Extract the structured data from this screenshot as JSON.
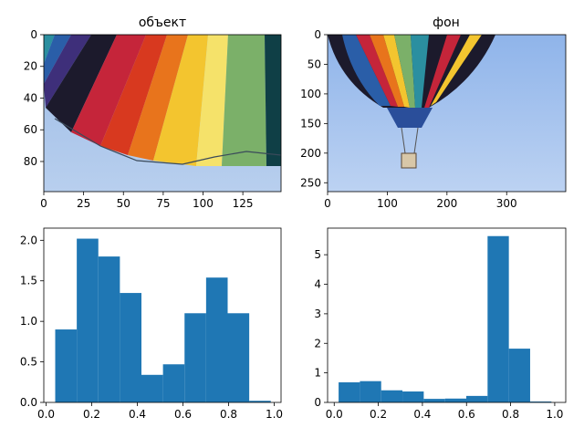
{
  "chart_data": [
    {
      "type": "image",
      "title": "объект",
      "image_description_icon": "hot-air-balloon-closeup-icon",
      "xlim": [
        0,
        149
      ],
      "ylim": [
        99,
        0
      ],
      "x_ticks": [
        0,
        25,
        50,
        75,
        100,
        125
      ],
      "y_ticks": [
        0,
        20,
        40,
        60,
        80
      ]
    },
    {
      "type": "image",
      "title": "фон",
      "image_description_icon": "hot-air-balloon-full-icon",
      "xlim": [
        0,
        399
      ],
      "ylim": [
        265,
        0
      ],
      "x_ticks": [
        0,
        100,
        200,
        300
      ],
      "y_ticks": [
        0,
        50,
        100,
        150,
        200,
        250
      ]
    },
    {
      "type": "bar",
      "title": "",
      "xlabel": "",
      "ylabel": "",
      "xlim": [
        -0.01,
        1.03
      ],
      "ylim": [
        0,
        2.15
      ],
      "x_ticks": [
        0.0,
        0.2,
        0.4,
        0.6,
        0.8,
        1.0
      ],
      "x_tick_labels": [
        "0.0",
        "0.2",
        "0.4",
        "0.6",
        "0.8",
        "1.0"
      ],
      "y_ticks": [
        0.0,
        0.5,
        1.0,
        1.5,
        2.0
      ],
      "y_tick_labels": [
        "0.0",
        "0.5",
        "1.0",
        "1.5",
        "2.0"
      ],
      "bin_edges": [
        0.04,
        0.1345,
        0.229,
        0.3235,
        0.418,
        0.5125,
        0.607,
        0.7015,
        0.796,
        0.8905,
        0.985
      ],
      "values": [
        0.9,
        2.02,
        1.8,
        1.35,
        0.34,
        0.47,
        1.1,
        1.54,
        1.1,
        0.02
      ],
      "color": "#1f77b4"
    },
    {
      "type": "bar",
      "title": "",
      "xlabel": "",
      "ylabel": "",
      "xlim": [
        -0.03,
        1.05
      ],
      "ylim": [
        0,
        5.9
      ],
      "x_ticks": [
        0.0,
        0.2,
        0.4,
        0.6,
        0.8,
        1.0
      ],
      "x_tick_labels": [
        "0.0",
        "0.2",
        "0.4",
        "0.6",
        "0.8",
        "1.0"
      ],
      "y_ticks": [
        0,
        1,
        2,
        3,
        4,
        5
      ],
      "y_tick_labels": [
        "0",
        "1",
        "2",
        "3",
        "4",
        "5"
      ],
      "bin_edges": [
        0.02,
        0.1165,
        0.213,
        0.3095,
        0.406,
        0.5025,
        0.599,
        0.6955,
        0.792,
        0.8885,
        0.985
      ],
      "values": [
        0.68,
        0.72,
        0.41,
        0.37,
        0.12,
        0.13,
        0.22,
        5.63,
        1.82,
        0.03
      ],
      "color": "#1f77b4"
    }
  ]
}
